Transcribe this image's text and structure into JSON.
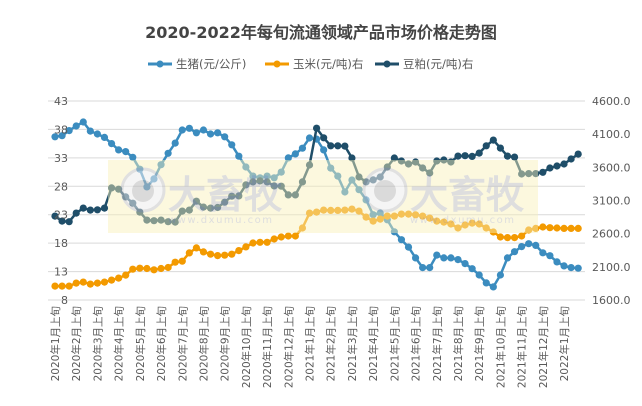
{
  "chart_data": {
    "type": "line",
    "title": "2020-2022年每旬流通领域产品市场价格走势图",
    "legend_position": "top",
    "grid": "horizontal",
    "y_left": {
      "ylim": [
        8,
        43
      ],
      "ticks": [
        "8",
        "13",
        "18",
        "23",
        "28",
        "33",
        "38",
        "43"
      ]
    },
    "y_right": {
      "ylim": [
        1600,
        4600
      ],
      "ticks": [
        "1600.0",
        "2100.0",
        "2600.0",
        "3100.0",
        "3600.0",
        "4100.0",
        "4600.0"
      ]
    },
    "x_tick_labels": [
      "2020年1月上旬",
      "2020年2月上旬",
      "2020年3月上旬",
      "2020年4月上旬",
      "2020年5月上旬",
      "2020年6月上旬",
      "2020年7月上旬",
      "2020年8月上旬",
      "2020年9月上旬",
      "2020年10月上旬",
      "2020年11月上旬",
      "2020年12月上旬",
      "2021年1月上旬",
      "2021年2月上旬",
      "2021年3月上旬",
      "2021年4月上旬",
      "2021年5月上旬",
      "2021年6月上旬",
      "2021年7月上旬",
      "2021年8月上旬",
      "2021年9月上旬",
      "2021年10月上旬",
      "2021年11月上旬",
      "2021年12月上旬",
      "2022年1月上旬"
    ],
    "series": [
      {
        "name": "生猪(元/公斤)",
        "axis": "left",
        "color": "#3b8cbf",
        "values": [
          36.7,
          36.9,
          37.8,
          38.6,
          39.3,
          37.7,
          37.2,
          36.6,
          35.5,
          34.4,
          34.1,
          33.1,
          31.0,
          27.9,
          29.3,
          31.8,
          33.8,
          35.6,
          37.9,
          38.2,
          37.4,
          37.9,
          37.2,
          37.4,
          36.7,
          35.3,
          33.3,
          31.4,
          29.8,
          29.5,
          29.8,
          29.5,
          30.5,
          33.0,
          33.7,
          34.7,
          36.5,
          36.3,
          34.4,
          31.2,
          29.8,
          27.0,
          29.1,
          27.4,
          25.6,
          23.0,
          23.3,
          22.1,
          20.0,
          18.6,
          17.3,
          15.4,
          13.7,
          13.7,
          15.9,
          15.4,
          15.4,
          15.1,
          14.4,
          13.5,
          12.4,
          11.0,
          10.3,
          12.4,
          15.4,
          16.5,
          17.4,
          17.9,
          17.6,
          16.3,
          15.8,
          14.7,
          14.0,
          13.7,
          13.6
        ]
      },
      {
        "name": "玉米(元/吨)右",
        "axis": "right",
        "color": "#f39a00",
        "values": [
          1810,
          1810,
          1810,
          1855,
          1870,
          1840,
          1855,
          1870,
          1900,
          1930,
          1975,
          2065,
          2080,
          2075,
          2055,
          2075,
          2090,
          2170,
          2185,
          2310,
          2385,
          2325,
          2290,
          2270,
          2275,
          2290,
          2345,
          2400,
          2460,
          2470,
          2470,
          2520,
          2550,
          2565,
          2565,
          2685,
          2910,
          2925,
          2955,
          2950,
          2950,
          2955,
          2970,
          2940,
          2850,
          2790,
          2820,
          2865,
          2865,
          2895,
          2895,
          2885,
          2865,
          2835,
          2790,
          2775,
          2745,
          2685,
          2730,
          2760,
          2745,
          2685,
          2625,
          2550,
          2540,
          2540,
          2565,
          2655,
          2680,
          2700,
          2690,
          2685,
          2680,
          2680,
          2680
        ]
      },
      {
        "name": "豆粕(元/吨)右",
        "axis": "right",
        "color": "#1f4e69",
        "values": [
          2865,
          2790,
          2780,
          2910,
          2985,
          2955,
          2960,
          2985,
          3290,
          3270,
          3155,
          3060,
          2925,
          2805,
          2795,
          2805,
          2780,
          2775,
          2940,
          2955,
          3090,
          3000,
          2985,
          2995,
          3075,
          3165,
          3170,
          3335,
          3380,
          3395,
          3380,
          3320,
          3315,
          3185,
          3185,
          3380,
          3635,
          4190,
          4045,
          3925,
          3925,
          3920,
          3740,
          3455,
          3380,
          3410,
          3455,
          3605,
          3740,
          3695,
          3650,
          3680,
          3590,
          3515,
          3695,
          3710,
          3680,
          3770,
          3775,
          3765,
          3815,
          3925,
          4010,
          3890,
          3770,
          3755,
          3500,
          3505,
          3505,
          3525,
          3590,
          3620,
          3650,
          3725,
          3800
        ]
      }
    ]
  },
  "watermark": {
    "brand": "大畜牧",
    "url": "www.dxumu.com"
  }
}
